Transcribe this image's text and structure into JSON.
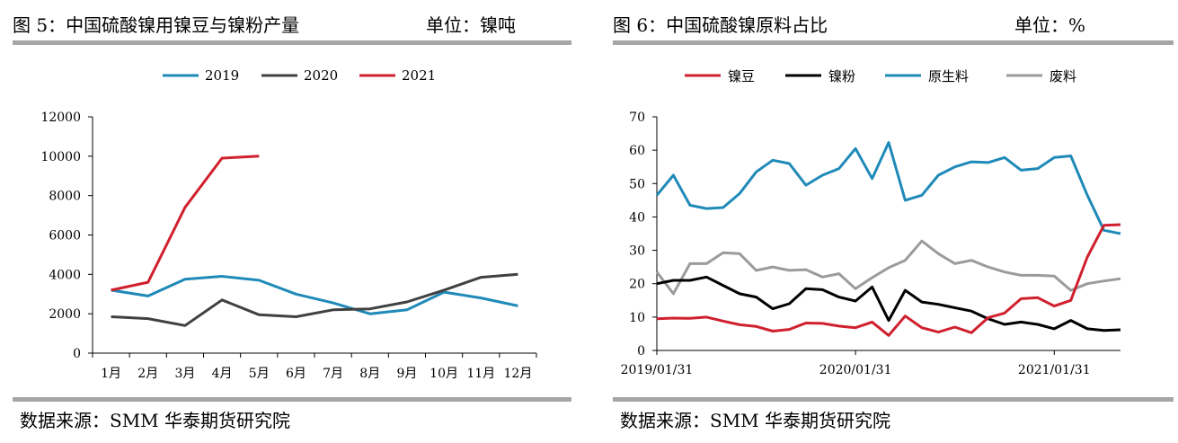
{
  "left": {
    "title": "图 5：中国硫酸镍用镍豆与镍粉产量",
    "unit": "单位：镍吨",
    "source": "数据来源：SMM  华泰期货研究院",
    "chart_data": {
      "type": "line",
      "categories": [
        "1月",
        "2月",
        "3月",
        "4月",
        "5月",
        "6月",
        "7月",
        "8月",
        "9月",
        "10月",
        "11月",
        "12月"
      ],
      "ylim": [
        0,
        12000
      ],
      "yticks": [
        0,
        2000,
        4000,
        6000,
        8000,
        10000,
        12000
      ],
      "legend_position": "top",
      "series": [
        {
          "name": "2019",
          "color": "#1f8ab8",
          "values": [
            3200,
            2900,
            3750,
            3900,
            3700,
            3000,
            2550,
            2000,
            2200,
            3100,
            2800,
            2400
          ]
        },
        {
          "name": "2020",
          "color": "#404040",
          "values": [
            1850,
            1750,
            1400,
            2700,
            1950,
            1850,
            2200,
            2250,
            2600,
            3200,
            3850,
            4000
          ]
        },
        {
          "name": "2021",
          "color": "#d0202e",
          "values": [
            3200,
            3600,
            7400,
            9900,
            10000,
            null,
            null,
            null,
            null,
            null,
            null,
            null
          ]
        }
      ]
    }
  },
  "right": {
    "title": "图 6：中国硫酸镍原料占比",
    "unit": "单位：%",
    "source": "数据来源：SMM  华泰期货研究院",
    "chart_data": {
      "type": "line",
      "x_tick_labels": [
        "2019/01/31",
        "2020/01/31",
        "2021/01/31"
      ],
      "x_tick_index": [
        0,
        12,
        24
      ],
      "ylim": [
        0,
        70
      ],
      "yticks": [
        0,
        10,
        20,
        30,
        40,
        50,
        60,
        70
      ],
      "legend_position": "top",
      "series": [
        {
          "name": "镍豆",
          "color": "#d0202e",
          "values": [
            9.5,
            9.7,
            9.6,
            10.0,
            8.8,
            7.7,
            7.2,
            5.8,
            6.3,
            8.2,
            8.1,
            7.3,
            6.8,
            8.5,
            4.5,
            10.3,
            6.8,
            5.5,
            7.0,
            5.3,
            9.8,
            11.2,
            15.5,
            15.8,
            13.3,
            15.0,
            28.0,
            37.5,
            37.7
          ]
        },
        {
          "name": "镍粉",
          "color": "#000000",
          "values": [
            20.0,
            21.0,
            21.0,
            22.0,
            19.5,
            17.0,
            16.0,
            12.5,
            14.0,
            18.5,
            18.2,
            16.0,
            14.8,
            19.0,
            9.0,
            18.0,
            14.5,
            13.8,
            12.8,
            11.8,
            9.5,
            7.8,
            8.5,
            7.8,
            6.5,
            9.0,
            6.5,
            6.0,
            6.2
          ]
        },
        {
          "name": "原生料",
          "color": "#1f8ab8",
          "values": [
            46.5,
            52.5,
            43.5,
            42.5,
            42.8,
            47.0,
            53.5,
            57.0,
            56.0,
            49.5,
            52.5,
            54.5,
            60.5,
            51.5,
            62.3,
            45.0,
            46.5,
            52.5,
            55.0,
            56.5,
            56.3,
            57.8,
            54.0,
            54.5,
            57.8,
            58.3,
            46.5,
            36.0,
            35.0
          ]
        },
        {
          "name": "废料",
          "color": "#9b9b9b",
          "values": [
            23.5,
            17.0,
            26.0,
            26.0,
            29.3,
            29.0,
            24.0,
            25.0,
            24.0,
            24.2,
            22.0,
            23.0,
            18.5,
            21.8,
            24.8,
            27.0,
            32.8,
            29.0,
            26.0,
            27.0,
            25.0,
            23.5,
            22.5,
            22.5,
            22.3,
            18.0,
            20.0,
            20.8,
            21.5
          ]
        }
      ]
    }
  }
}
